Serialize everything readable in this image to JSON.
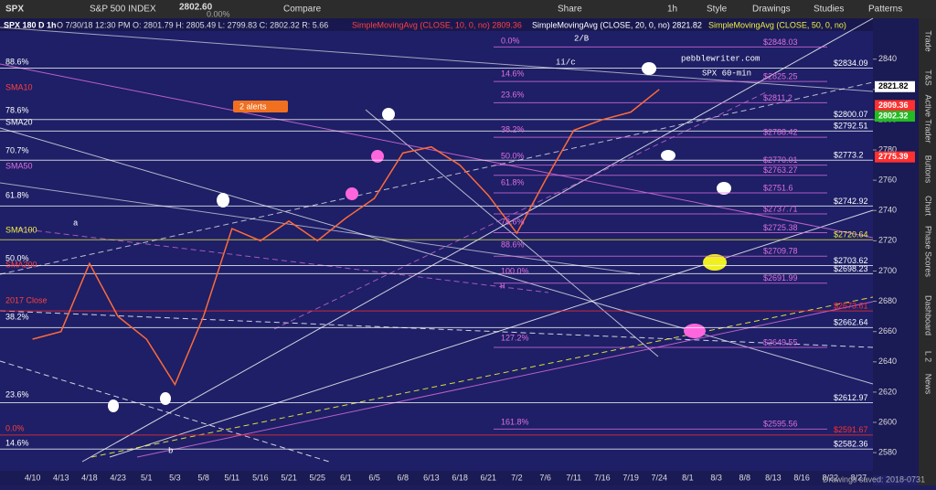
{
  "toolbar": {
    "symbol": "SPX",
    "name": "S&P 500 INDEX",
    "price": "2802.60",
    "change": "0.00%",
    "buttons": [
      "Compare",
      "Share",
      "1h",
      "Style",
      "Drawings",
      "Studies",
      "Patterns"
    ]
  },
  "legend": {
    "header": "SPX 180 D 1h",
    "ohlc": "O 7/30/18 12:30 PM O: 2801.79 H: 2805.49 L: 2799.83 C: 2802.32 R: 5.66",
    "sma10": "SimpleMovingAvg (CLOSE, 10, 0, no) 2809.36",
    "sma20": "SimpleMovingAvg (CLOSE, 20, 0, no) 2821.82",
    "sma50": "SimpleMovingAvg (CLOSE, 50, 0, no)"
  },
  "chart_data": {
    "type": "line",
    "color": "#ff6a3a",
    "categories": [
      "4/10",
      "4/13",
      "4/18",
      "4/23",
      "5/1",
      "5/3",
      "5/8",
      "5/11",
      "5/16",
      "5/21",
      "5/25",
      "6/1",
      "6/5",
      "6/8",
      "6/13",
      "6/18",
      "6/21",
      "7/2",
      "7/6",
      "7/11",
      "7/16",
      "7/19",
      "7/24",
      "8/1",
      "8/3",
      "8/8",
      "8/13",
      "8/16",
      "8/22",
      "8/27"
    ],
    "values": [
      2655,
      2660,
      2705,
      2670,
      2655,
      2625,
      2670,
      2728,
      2720,
      2733,
      2720,
      2735,
      2748,
      2778,
      2782,
      2770,
      2750,
      2725,
      2760,
      2793,
      2800,
      2805,
      2820,
      null,
      null,
      null,
      null,
      null,
      null,
      null
    ],
    "ylim": [
      2568,
      2867
    ],
    "yticks": [
      2580,
      2600,
      2620,
      2640,
      2660,
      2680,
      2700,
      2720,
      2740,
      2760,
      2780,
      2800,
      2820,
      2840
    ],
    "price_tags": [
      {
        "value": 2821.82,
        "color": "#ffffff"
      },
      {
        "value": 2809.36,
        "color": "#ff3030"
      },
      {
        "value": 2802.32,
        "color": "#22bb22"
      },
      {
        "value": 2775.39,
        "color": "#ff3030"
      }
    ],
    "levels": [
      {
        "value": 2848.03,
        "label": "$2848.03",
        "color": "#e070e0"
      },
      {
        "value": 2834.09,
        "label": "$2834.09",
        "color": "#ffffff"
      },
      {
        "value": 2825.25,
        "label": "$2825.25",
        "color": "#e070e0"
      },
      {
        "value": 2811.2,
        "label": "$2811.2",
        "color": "#e070e0"
      },
      {
        "value": 2800.07,
        "label": "$2800.07",
        "color": "#ffffff"
      },
      {
        "value": 2792.51,
        "label": "$2792.51",
        "color": "#ffffff"
      },
      {
        "value": 2788.42,
        "label": "$2788.42",
        "color": "#e070e0"
      },
      {
        "value": 2773.2,
        "label": "$2773.2",
        "color": "#ffffff"
      },
      {
        "value": 2770.01,
        "label": "$2770.01",
        "color": "#e070e0"
      },
      {
        "value": 2763.27,
        "label": "$2763.27",
        "color": "#e070e0"
      },
      {
        "value": 2751.6,
        "label": "$2751.6",
        "color": "#e070e0"
      },
      {
        "value": 2742.92,
        "label": "$2742.92",
        "color": "#ffffff"
      },
      {
        "value": 2737.71,
        "label": "$2737.71",
        "color": "#e070e0"
      },
      {
        "value": 2725.38,
        "label": "$2725.38",
        "color": "#e070e0"
      },
      {
        "value": 2720.64,
        "label": "$2720.64",
        "color": "#f0f040"
      },
      {
        "value": 2709.78,
        "label": "$2709.78",
        "color": "#e070e0"
      },
      {
        "value": 2703.62,
        "label": "$2703.62",
        "color": "#ffffff"
      },
      {
        "value": 2698.23,
        "label": "$2698.23",
        "color": "#ffffff"
      },
      {
        "value": 2691.99,
        "label": "$2691.99",
        "color": "#e070e0"
      },
      {
        "value": 2673.61,
        "label": "$2673.61",
        "color": "#ff3030"
      },
      {
        "value": 2662.64,
        "label": "$2662.64",
        "color": "#ffffff"
      },
      {
        "value": 2649.55,
        "label": "$2649.55",
        "color": "#e070e0"
      },
      {
        "value": 2612.97,
        "label": "$2612.97",
        "color": "#ffffff"
      },
      {
        "value": 2595.56,
        "label": "$2595.56",
        "color": "#e070e0"
      },
      {
        "value": 2591.67,
        "label": "$2591.67",
        "color": "#ff3030"
      },
      {
        "value": 2582.36,
        "label": "$2582.36",
        "color": "#ffffff"
      }
    ],
    "left_labels": [
      "88.6%",
      "SMA10",
      "78.6%",
      "SMA20",
      "70.7%",
      "SMA50",
      "61.8%",
      "SMA100",
      "50.0%",
      "SMA200",
      "2017 Close",
      "38.2%",
      "23.6%",
      "0.0%",
      "14.6%"
    ],
    "fib_labels": [
      "0.0%",
      "14.6%",
      "23.6%",
      "38.2%",
      "50.0%",
      "61.8%",
      "78.6%",
      "88.6%",
      "100.0%",
      "127.2%",
      "161.8%"
    ],
    "annotations": [
      "2/B",
      "ii/c",
      "pebblewriter.com",
      "SPX 60-min",
      "a",
      "b",
      "H"
    ],
    "alert": "2 alerts"
  },
  "sidebar": [
    "Trade",
    "T&S",
    "Active Trader",
    "Buttons",
    "Chart",
    "Phase Scores",
    "Dashboard",
    "L 2",
    "News"
  ],
  "status": "Drawings saved: 2018-0731"
}
